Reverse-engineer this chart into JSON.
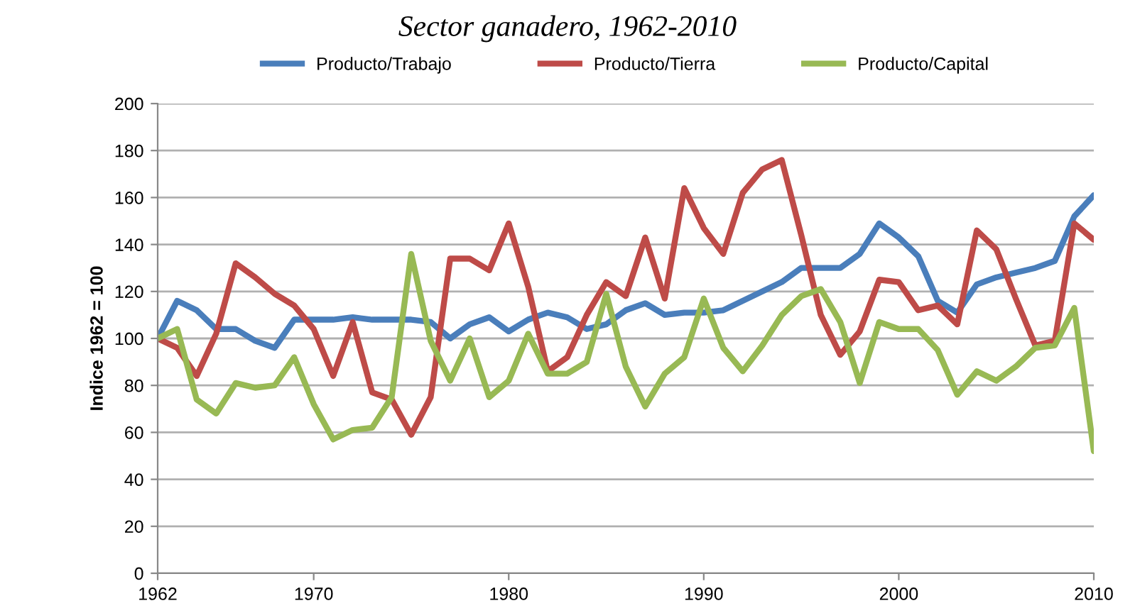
{
  "chart_data": {
    "type": "line",
    "title": "Sector ganadero, 1962-2010",
    "ylabel": "Indice 1962 = 100",
    "x": [
      1962,
      1963,
      1964,
      1965,
      1966,
      1967,
      1968,
      1969,
      1970,
      1971,
      1972,
      1973,
      1974,
      1975,
      1976,
      1977,
      1978,
      1979,
      1980,
      1981,
      1982,
      1983,
      1984,
      1985,
      1986,
      1987,
      1988,
      1989,
      1990,
      1991,
      1992,
      1993,
      1994,
      1995,
      1996,
      1997,
      1998,
      1999,
      2000,
      2001,
      2002,
      2003,
      2004,
      2005,
      2006,
      2007,
      2008,
      2009,
      2010
    ],
    "series": [
      {
        "name": "Producto/Trabajo",
        "color": "#4a7ebb",
        "values": [
          100,
          116,
          112,
          104,
          104,
          99,
          96,
          108,
          108,
          108,
          109,
          108,
          108,
          108,
          107,
          100,
          106,
          109,
          103,
          108,
          111,
          109,
          104,
          106,
          112,
          115,
          110,
          111,
          111,
          112,
          116,
          120,
          124,
          130,
          130,
          130,
          136,
          149,
          143,
          135,
          116,
          111,
          123,
          126,
          128,
          130,
          133,
          152,
          161
        ]
      },
      {
        "name": "Producto/Tierra",
        "color": "#be4b48",
        "values": [
          100,
          96,
          84,
          102,
          132,
          126,
          119,
          114,
          104,
          84,
          107,
          77,
          74,
          59,
          75,
          134,
          134,
          129,
          149,
          122,
          86,
          92,
          110,
          124,
          118,
          143,
          117,
          164,
          147,
          136,
          162,
          172,
          176,
          144,
          110,
          93,
          103,
          125,
          124,
          112,
          114,
          106,
          146,
          138,
          117,
          97,
          99,
          149,
          142
        ]
      },
      {
        "name": "Producto/Capital",
        "color": "#98b954",
        "values": [
          100,
          104,
          74,
          68,
          81,
          79,
          80,
          92,
          72,
          57,
          61,
          62,
          75,
          136,
          99,
          82,
          100,
          75,
          82,
          102,
          85,
          85,
          90,
          119,
          88,
          71,
          85,
          92,
          117,
          96,
          86,
          97,
          110,
          118,
          121,
          107,
          81,
          107,
          104,
          104,
          95,
          76,
          86,
          82,
          88,
          96,
          97,
          113,
          52
        ]
      }
    ],
    "xlim": [
      1962,
      2010
    ],
    "xticks": [
      1962,
      1970,
      1980,
      1990,
      2000,
      2010
    ],
    "ylim": [
      0,
      200
    ],
    "yticks": [
      0,
      20,
      40,
      60,
      80,
      100,
      120,
      140,
      160,
      180,
      200
    ],
    "grid": "y",
    "legend": "top",
    "marker": "none",
    "line_style": "solid"
  }
}
